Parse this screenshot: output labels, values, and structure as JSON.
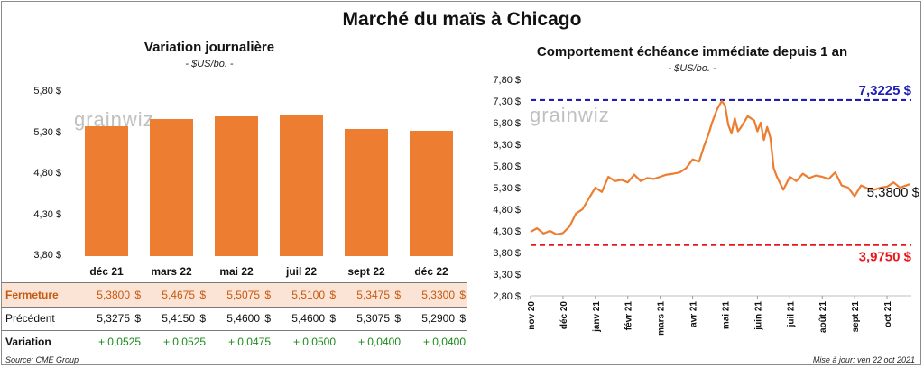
{
  "title": "Marché du maïs à Chicago",
  "watermark": "grainwiz",
  "left": {
    "title": "Variation  journalière",
    "unit": "- $US/bo. -",
    "row_labels": {
      "close": "Fermeture",
      "prev": "Précédent",
      "change": "Variation"
    },
    "currency": "$"
  },
  "right": {
    "title": "Comportement  échéance immédiate depuis 1 an",
    "unit": "- $US/bo. -",
    "annotations": {
      "high": "7,3225 $",
      "last": "5,3800 $",
      "low": "3,9750 $"
    }
  },
  "footer": {
    "source": "Source: CME Group",
    "updated": "Mise à jour: ven 22 oct 2021"
  },
  "colors": {
    "bar": "#ed7d31",
    "line": "#ed7d31",
    "high_line": "#1f1fb4",
    "low_line": "#e8171b",
    "up": "#1a8a1a",
    "close_row_bg": "#fbe4d5"
  },
  "chart_data": [
    {
      "type": "bar",
      "title": "Variation  journalière",
      "unit": "- $US/bo. -",
      "categories": [
        "déc 21",
        "mars 22",
        "mai 22",
        "juil 22",
        "sept 22",
        "déc 22"
      ],
      "values": [
        5.38,
        5.4675,
        5.5075,
        5.51,
        5.3475,
        5.33
      ],
      "ylim": [
        3.8,
        5.8
      ],
      "yticks": [
        "5,80 $",
        "5,30 $",
        "4,80 $",
        "4,30 $",
        "3,80 $"
      ],
      "table": {
        "close": [
          "5,3800",
          "5,4675",
          "5,5075",
          "5,5100",
          "5,3475",
          "5,3300"
        ],
        "prev": [
          "5,3275",
          "5,4150",
          "5,4600",
          "5,4600",
          "5,3075",
          "5,2900"
        ],
        "change": [
          "+ 0,0525",
          "+ 0,0525",
          "+ 0,0475",
          "+ 0,0500",
          "+ 0,0400",
          "+ 0,0400"
        ]
      }
    },
    {
      "type": "line",
      "title": "Comportement  échéance immédiate depuis 1 an",
      "unit": "- $US/bo. -",
      "ylim": [
        2.8,
        7.8
      ],
      "yticks": [
        "7,80 $",
        "7,30 $",
        "6,80 $",
        "6,30 $",
        "5,80 $",
        "5,30 $",
        "4,80 $",
        "4,30 $",
        "3,80 $",
        "3,30 $",
        "2,80 $"
      ],
      "xticks": [
        "nov 20",
        "déc 20",
        "janv 21",
        "févr 21",
        "mars 21",
        "avr 21",
        "mai 21",
        "juin 21",
        "juil 21",
        "août 21",
        "sept 21",
        "oct 21"
      ],
      "x": [
        0,
        0.2,
        0.4,
        0.6,
        0.8,
        1.0,
        1.2,
        1.4,
        1.6,
        1.8,
        2.0,
        2.2,
        2.4,
        2.6,
        2.8,
        3.0,
        3.2,
        3.4,
        3.6,
        3.8,
        4.0,
        4.2,
        4.4,
        4.6,
        4.8,
        5.0,
        5.2,
        5.35,
        5.5,
        5.6,
        5.75,
        5.9,
        6.0,
        6.1,
        6.2,
        6.3,
        6.4,
        6.5,
        6.7,
        6.9,
        7.0,
        7.1,
        7.2,
        7.3,
        7.4,
        7.5,
        7.6,
        7.8,
        8.0,
        8.2,
        8.4,
        8.6,
        8.8,
        9.0,
        9.2,
        9.4,
        9.6,
        9.8,
        10.0,
        10.2,
        10.4,
        10.6,
        10.8,
        11.0,
        11.2,
        11.4,
        11.7
      ],
      "y": [
        4.28,
        4.36,
        4.24,
        4.3,
        4.22,
        4.25,
        4.4,
        4.7,
        4.8,
        5.05,
        5.3,
        5.2,
        5.55,
        5.45,
        5.48,
        5.42,
        5.6,
        5.45,
        5.52,
        5.5,
        5.55,
        5.6,
        5.62,
        5.65,
        5.75,
        5.95,
        5.9,
        6.25,
        6.55,
        6.8,
        7.1,
        7.3,
        7.2,
        6.75,
        6.55,
        6.9,
        6.6,
        6.7,
        6.95,
        6.85,
        6.6,
        6.8,
        6.4,
        6.7,
        6.45,
        5.75,
        5.55,
        5.25,
        5.55,
        5.45,
        5.62,
        5.52,
        5.58,
        5.55,
        5.5,
        5.65,
        5.35,
        5.3,
        5.1,
        5.35,
        5.28,
        5.25,
        5.3,
        5.32,
        5.42,
        5.3,
        5.38
      ],
      "reference_lines": [
        {
          "value": 7.3225,
          "label": "7,3225 $"
        },
        {
          "value": 3.975,
          "label": "3,9750 $"
        }
      ],
      "last": 5.38
    }
  ]
}
